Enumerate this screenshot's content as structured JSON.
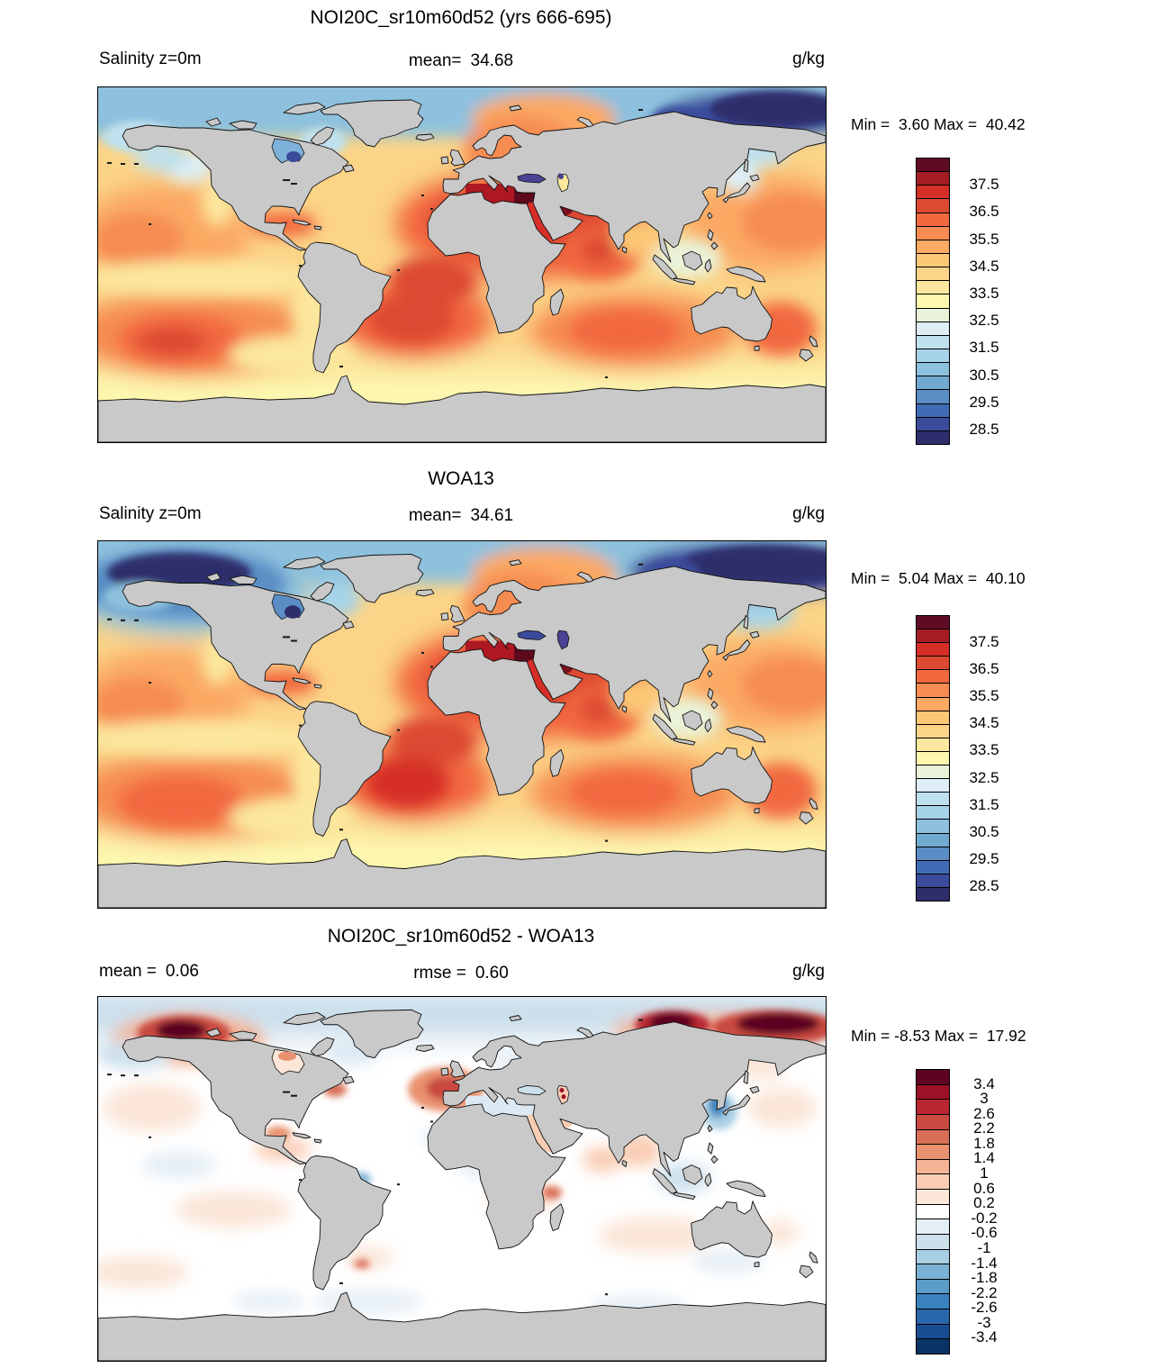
{
  "figure": {
    "variable": "Salinity z=0m",
    "unit": "g/kg",
    "land_color": "#c9c9c9",
    "coast_color": "#111111"
  },
  "panels": [
    {
      "title": "NOI20C_sr10m60d52 (yrs 666-695)",
      "left_label": "Salinity z=0m",
      "center_label": "mean=",
      "center_value": "34.68",
      "unit": "g/kg",
      "min_label": "Min =",
      "min_value": "3.60",
      "max_label": "Max =",
      "max_value": "40.42",
      "colorbar": {
        "colors": [
          "#5f0b24",
          "#a41d24",
          "#d52e26",
          "#dd4a32",
          "#f2693f",
          "#f68c51",
          "#fba963",
          "#fbc876",
          "#fbd488",
          "#fbe79d",
          "#fdf7b0",
          "#e9f3da",
          "#ddeef6",
          "#bfe0ed",
          "#a6d3e8",
          "#8dc1de",
          "#71a9d1",
          "#5a8ec5",
          "#3f6cb5",
          "#3b4b9b",
          "#2f2d6c"
        ],
        "tick_labels": [
          "37.5",
          "36.5",
          "35.5",
          "34.5",
          "33.5",
          "32.5",
          "31.5",
          "30.5",
          "29.5",
          "28.5"
        ],
        "label_start": 2,
        "label_step": 2
      }
    },
    {
      "title": "WOA13",
      "left_label": "Salinity z=0m",
      "center_label": "mean=",
      "center_value": "34.61",
      "unit": "g/kg",
      "min_label": "Min =",
      "min_value": "5.04",
      "max_label": "Max =",
      "max_value": "40.10",
      "colorbar": {
        "colors": [
          "#5f0b24",
          "#a41d24",
          "#d52e26",
          "#dd4a32",
          "#f2693f",
          "#f68c51",
          "#fba963",
          "#fbc876",
          "#fbd488",
          "#fbe79d",
          "#fdf7b0",
          "#e9f3da",
          "#ddeef6",
          "#bfe0ed",
          "#a6d3e8",
          "#8dc1de",
          "#71a9d1",
          "#5a8ec5",
          "#3f6cb5",
          "#3b4b9b",
          "#2f2d6c"
        ],
        "tick_labels": [
          "37.5",
          "36.5",
          "35.5",
          "34.5",
          "33.5",
          "32.5",
          "31.5",
          "30.5",
          "29.5",
          "28.5"
        ],
        "label_start": 2,
        "label_step": 2
      }
    },
    {
      "title": "NOI20C_sr10m60d52 - WOA13",
      "left_label": "mean =",
      "left_value": "0.06",
      "center_label": "rmse =",
      "center_value": "0.60",
      "unit": "g/kg",
      "min_label": "Min =",
      "min_value": "-8.53",
      "max_label": "Max =",
      "max_value": "17.92",
      "colorbar": {
        "colors": [
          "#5c0420",
          "#9d1127",
          "#b92631",
          "#c94a41",
          "#d96f57",
          "#e9926f",
          "#f4b394",
          "#f9cdb4",
          "#fbe6d8",
          "#ffffff",
          "#e4eef5",
          "#cce0ec",
          "#a8cfe4",
          "#7cb2d5",
          "#5b9cc9",
          "#3a82bd",
          "#2a68ac",
          "#174e92",
          "#0a3264"
        ],
        "tick_labels": [
          "3.4",
          "3",
          "2.6",
          "2.2",
          "1.8",
          "1.4",
          "1",
          "0.6",
          "0.2",
          "-0.2",
          "-0.6",
          "-1",
          "-1.4",
          "-1.8",
          "-2.2",
          "-2.6",
          "-3",
          "-3.4"
        ],
        "label_start": 1,
        "label_step": 1
      }
    }
  ],
  "chart_data": [
    {
      "type": "heatmap",
      "title": "NOI20C_sr10m60d52 (yrs 666-695)",
      "variable": "Salinity z=0m",
      "units": "g/kg",
      "mean": 34.68,
      "min": 3.6,
      "max": 40.42,
      "projection": "global equirectangular map",
      "colorbar_ticks": [
        37.5,
        36.5,
        35.5,
        34.5,
        33.5,
        32.5,
        31.5,
        30.5,
        29.5,
        28.5
      ],
      "colorbar_cell_step": 0.5,
      "legend_position": "right",
      "notes": "High salinity (red) in subtropical Atlantic gyres and Mediterranean; low salinity (blue) in Arctic, Hudson Bay"
    },
    {
      "type": "heatmap",
      "title": "WOA13",
      "variable": "Salinity z=0m",
      "units": "g/kg",
      "mean": 34.61,
      "min": 5.04,
      "max": 40.1,
      "projection": "global equirectangular map",
      "colorbar_ticks": [
        37.5,
        36.5,
        35.5,
        34.5,
        33.5,
        32.5,
        31.5,
        30.5,
        29.5,
        28.5
      ],
      "colorbar_cell_step": 0.5,
      "legend_position": "right",
      "notes": "Observed climatology; very low salinity (dark blue) Bering Sea, Arctic shelf, Black and Caspian Seas"
    },
    {
      "type": "heatmap",
      "title": "NOI20C_sr10m60d52 - WOA13",
      "variable": "Salinity difference z=0m",
      "units": "g/kg",
      "mean": 0.06,
      "rmse": 0.6,
      "min": -8.53,
      "max": 17.92,
      "projection": "global equirectangular map",
      "colorbar_ticks": [
        3.4,
        3,
        2.6,
        2.2,
        1.8,
        1.4,
        1,
        0.6,
        0.2,
        -0.2,
        -0.6,
        -1,
        -1.4,
        -1.8,
        -2.2,
        -2.6,
        -3,
        -3.4
      ],
      "colorbar_cell_step": 0.4,
      "legend_position": "right",
      "notes": "Mostly near zero (white); strong positive (dark red) along Arctic shelves off Alaska and Siberia and in Caspian Sea"
    }
  ]
}
